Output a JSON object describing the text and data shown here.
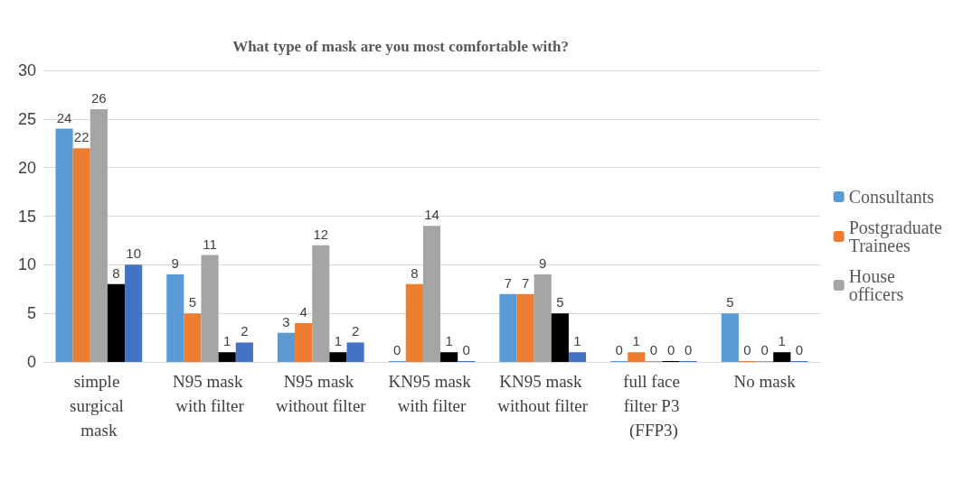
{
  "chart_data": {
    "type": "bar",
    "title": "What type of mask are you most comfortable with?",
    "categories": [
      "simple surgical mask",
      "N95 mask with filter",
      "N95 mask without filter",
      "KN95 mask with filter",
      "KN95 mask without filter",
      "full face filter P3 (FFP3)",
      "No mask"
    ],
    "series": [
      {
        "name": "Consultants",
        "color": "#5b9bd5",
        "values": [
          24,
          9,
          3,
          0,
          7,
          0,
          5
        ]
      },
      {
        "name": "Postgraduate Trainees",
        "color": "#ed7d31",
        "values": [
          22,
          5,
          4,
          8,
          7,
          1,
          0
        ]
      },
      {
        "name": "House officers",
        "color": "#a5a5a5",
        "values": [
          26,
          11,
          12,
          14,
          9,
          0,
          0
        ]
      },
      {
        "color": "#000000",
        "values": [
          8,
          1,
          1,
          1,
          5,
          0,
          1
        ]
      },
      {
        "color": "#4472c4",
        "values": [
          10,
          2,
          2,
          0,
          1,
          0,
          0
        ]
      }
    ],
    "ylim": [
      0,
      30
    ],
    "yticks": [
      0,
      5,
      10,
      15,
      20,
      25,
      30
    ],
    "grid": "y",
    "legend": "right",
    "data_labels": true
  }
}
